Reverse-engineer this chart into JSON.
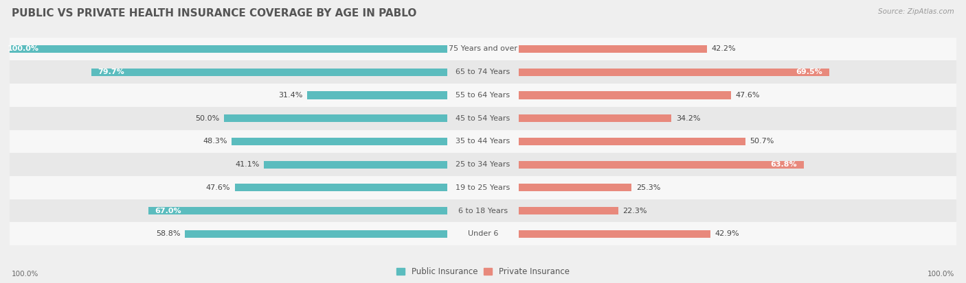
{
  "title": "PUBLIC VS PRIVATE HEALTH INSURANCE COVERAGE BY AGE IN PABLO",
  "source": "Source: ZipAtlas.com",
  "categories": [
    "Under 6",
    "6 to 18 Years",
    "19 to 25 Years",
    "25 to 34 Years",
    "35 to 44 Years",
    "45 to 54 Years",
    "55 to 64 Years",
    "65 to 74 Years",
    "75 Years and over"
  ],
  "public_values": [
    58.8,
    67.0,
    47.6,
    41.1,
    48.3,
    50.0,
    31.4,
    79.7,
    100.0
  ],
  "private_values": [
    42.9,
    22.3,
    25.3,
    63.8,
    50.7,
    34.2,
    47.6,
    69.5,
    42.2
  ],
  "public_color": "#5bbcbe",
  "private_color": "#e8897c",
  "max_value": 100.0,
  "bg_color": "#efefef",
  "row_bg_light": "#f7f7f7",
  "row_bg_dark": "#e8e8e8",
  "title_fontsize": 11,
  "label_fontsize": 8,
  "bar_label_fontsize": 8,
  "legend_fontsize": 8.5,
  "footer_fontsize": 7.5,
  "source_fontsize": 7.5
}
